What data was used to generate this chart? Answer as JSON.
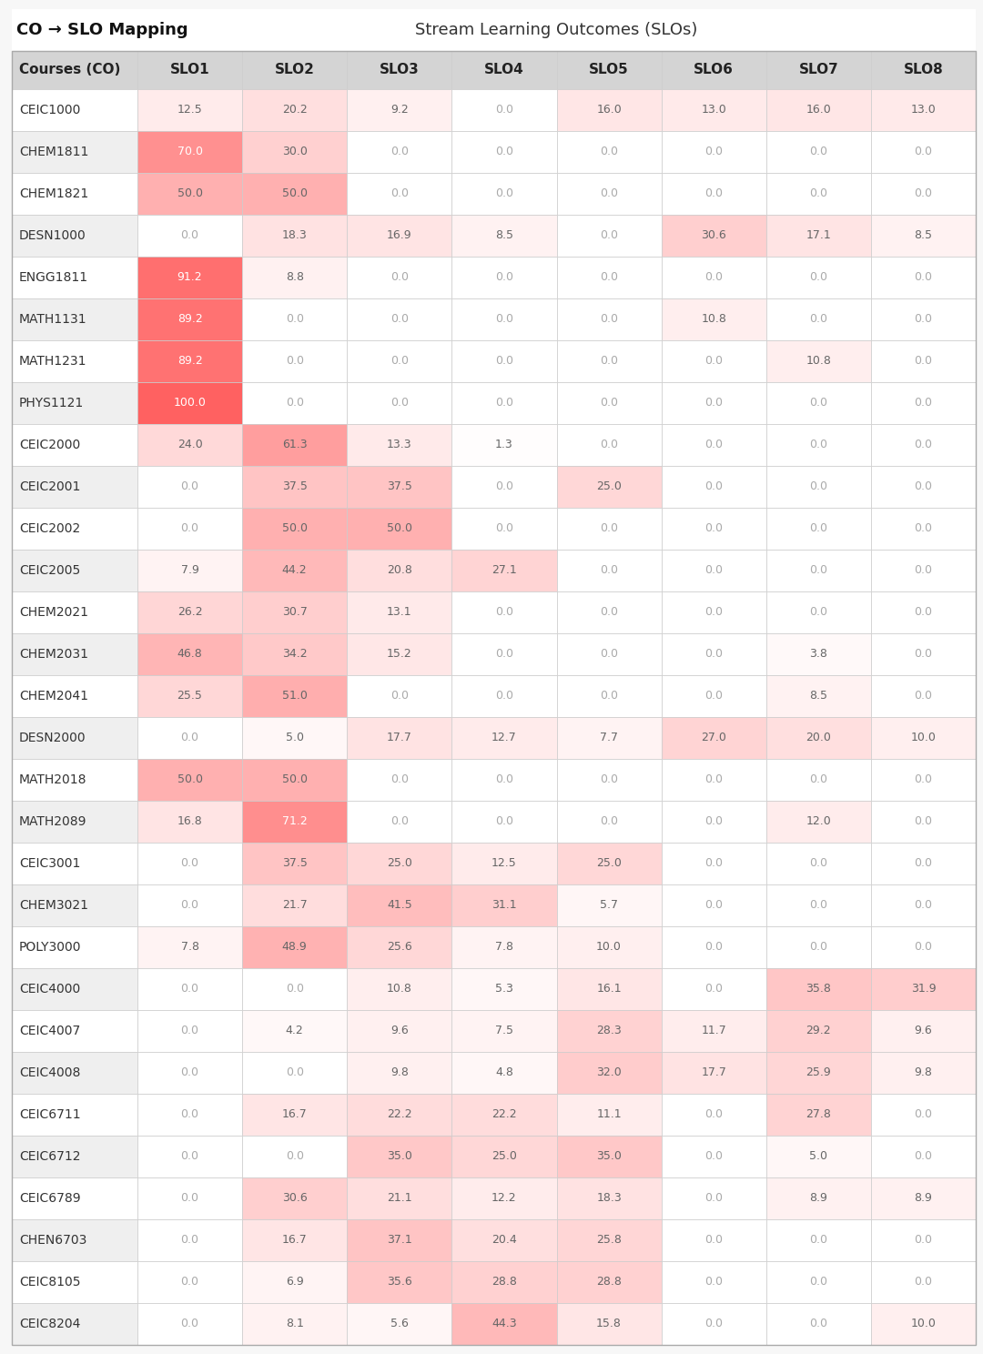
{
  "title_left": "CO → SLO Mapping",
  "title_center": "Stream Learning Outcomes (SLOs)",
  "col_header": "Courses (CO)",
  "slo_headers": [
    "SLO1",
    "SLO2",
    "SLO3",
    "SLO4",
    "SLO5",
    "SLO6",
    "SLO7",
    "SLO8"
  ],
  "rows": [
    {
      "course": "CEIC1000",
      "values": [
        12.5,
        20.2,
        9.2,
        0.0,
        16.0,
        13.0,
        16.0,
        13.0
      ]
    },
    {
      "course": "CHEM1811",
      "values": [
        70.0,
        30.0,
        0.0,
        0.0,
        0.0,
        0.0,
        0.0,
        0.0
      ]
    },
    {
      "course": "CHEM1821",
      "values": [
        50.0,
        50.0,
        0.0,
        0.0,
        0.0,
        0.0,
        0.0,
        0.0
      ]
    },
    {
      "course": "DESN1000",
      "values": [
        0.0,
        18.3,
        16.9,
        8.5,
        0.0,
        30.6,
        17.1,
        8.5
      ]
    },
    {
      "course": "ENGG1811",
      "values": [
        91.2,
        8.8,
        0.0,
        0.0,
        0.0,
        0.0,
        0.0,
        0.0
      ]
    },
    {
      "course": "MATH1131",
      "values": [
        89.2,
        0.0,
        0.0,
        0.0,
        0.0,
        10.8,
        0.0,
        0.0
      ]
    },
    {
      "course": "MATH1231",
      "values": [
        89.2,
        0.0,
        0.0,
        0.0,
        0.0,
        0.0,
        10.8,
        0.0
      ]
    },
    {
      "course": "PHYS1121",
      "values": [
        100.0,
        0.0,
        0.0,
        0.0,
        0.0,
        0.0,
        0.0,
        0.0
      ]
    },
    {
      "course": "CEIC2000",
      "values": [
        24.0,
        61.3,
        13.3,
        1.3,
        0.0,
        0.0,
        0.0,
        0.0
      ]
    },
    {
      "course": "CEIC2001",
      "values": [
        0.0,
        37.5,
        37.5,
        0.0,
        25.0,
        0.0,
        0.0,
        0.0
      ]
    },
    {
      "course": "CEIC2002",
      "values": [
        0.0,
        50.0,
        50.0,
        0.0,
        0.0,
        0.0,
        0.0,
        0.0
      ]
    },
    {
      "course": "CEIC2005",
      "values": [
        7.9,
        44.2,
        20.8,
        27.1,
        0.0,
        0.0,
        0.0,
        0.0
      ]
    },
    {
      "course": "CHEM2021",
      "values": [
        26.2,
        30.7,
        13.1,
        0.0,
        0.0,
        0.0,
        0.0,
        0.0
      ]
    },
    {
      "course": "CHEM2031",
      "values": [
        46.8,
        34.2,
        15.2,
        0.0,
        0.0,
        0.0,
        3.8,
        0.0
      ]
    },
    {
      "course": "CHEM2041",
      "values": [
        25.5,
        51.0,
        0.0,
        0.0,
        0.0,
        0.0,
        8.5,
        0.0
      ]
    },
    {
      "course": "DESN2000",
      "values": [
        0.0,
        5.0,
        17.7,
        12.7,
        7.7,
        27.0,
        20.0,
        10.0
      ]
    },
    {
      "course": "MATH2018",
      "values": [
        50.0,
        50.0,
        0.0,
        0.0,
        0.0,
        0.0,
        0.0,
        0.0
      ]
    },
    {
      "course": "MATH2089",
      "values": [
        16.8,
        71.2,
        0.0,
        0.0,
        0.0,
        0.0,
        12.0,
        0.0
      ]
    },
    {
      "course": "CEIC3001",
      "values": [
        0.0,
        37.5,
        25.0,
        12.5,
        25.0,
        0.0,
        0.0,
        0.0
      ]
    },
    {
      "course": "CHEM3021",
      "values": [
        0.0,
        21.7,
        41.5,
        31.1,
        5.7,
        0.0,
        0.0,
        0.0
      ]
    },
    {
      "course": "POLY3000",
      "values": [
        7.8,
        48.9,
        25.6,
        7.8,
        10.0,
        0.0,
        0.0,
        0.0
      ]
    },
    {
      "course": "CEIC4000",
      "values": [
        0.0,
        0.0,
        10.8,
        5.3,
        16.1,
        0.0,
        35.8,
        31.9
      ]
    },
    {
      "course": "CEIC4007",
      "values": [
        0.0,
        4.2,
        9.6,
        7.5,
        28.3,
        11.7,
        29.2,
        9.6
      ]
    },
    {
      "course": "CEIC4008",
      "values": [
        0.0,
        0.0,
        9.8,
        4.8,
        32.0,
        17.7,
        25.9,
        9.8
      ]
    },
    {
      "course": "CEIC6711",
      "values": [
        0.0,
        16.7,
        22.2,
        22.2,
        11.1,
        0.0,
        27.8,
        0.0
      ]
    },
    {
      "course": "CEIC6712",
      "values": [
        0.0,
        0.0,
        35.0,
        25.0,
        35.0,
        0.0,
        5.0,
        0.0
      ]
    },
    {
      "course": "CEIC6789",
      "values": [
        0.0,
        30.6,
        21.1,
        12.2,
        18.3,
        0.0,
        8.9,
        8.9
      ]
    },
    {
      "course": "CHEN6703",
      "values": [
        0.0,
        16.7,
        37.1,
        20.4,
        25.8,
        0.0,
        0.0,
        0.0
      ]
    },
    {
      "course": "CEIC8105",
      "values": [
        0.0,
        6.9,
        35.6,
        28.8,
        28.8,
        0.0,
        0.0,
        0.0
      ]
    },
    {
      "course": "CEIC8204",
      "values": [
        0.0,
        8.1,
        5.6,
        44.3,
        15.8,
        0.0,
        0.0,
        10.0
      ]
    }
  ],
  "fig_bg": "#f7f7f7",
  "title_bg": "#ffffff",
  "header_bg": "#d4d4d4",
  "row_bg_even": "#ffffff",
  "row_bg_odd": "#efefef",
  "border_color": "#cccccc",
  "title_sep_color": "#bbbbbb",
  "cell_text_zero": "#aaaaaa",
  "cell_text_nonzero": "#666666",
  "cell_text_high": "#ffffff",
  "header_text_color": "#222222",
  "course_text_color": "#333333",
  "title_left_color": "#111111",
  "title_center_color": "#333333",
  "title_fontsize": 13,
  "header_fontsize": 11,
  "cell_fontsize": 9,
  "course_fontsize": 10
}
